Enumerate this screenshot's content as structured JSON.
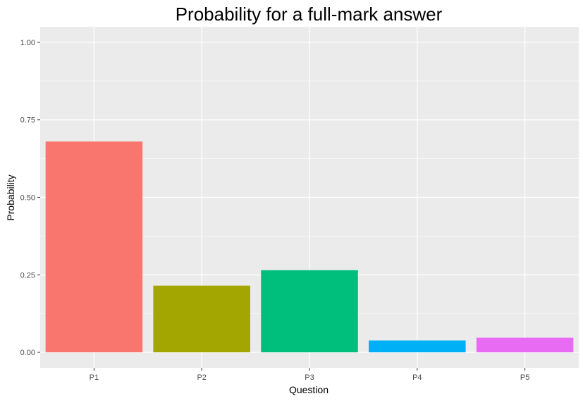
{
  "chart_data": {
    "type": "bar",
    "title": "Probability for a full-mark answer",
    "xlabel": "Question",
    "ylabel": "Probability",
    "categories": [
      "P1",
      "P2",
      "P3",
      "P4",
      "P5"
    ],
    "values": [
      0.68,
      0.215,
      0.265,
      0.038,
      0.047
    ],
    "bar_colors": [
      "#F8766D",
      "#A3A500",
      "#00BF7D",
      "#00B0F6",
      "#E76BF3"
    ],
    "ylim": [
      -0.05,
      1.05
    ],
    "yticks": [
      0,
      0.25,
      0.5,
      0.75,
      1
    ],
    "ytick_labels": [
      "0.00",
      "0.25",
      "0.50",
      "0.75",
      "1.00"
    ],
    "grid": true,
    "legend": "none",
    "panel_background": "#EBEBEB",
    "grid_color": "#FFFFFF"
  }
}
